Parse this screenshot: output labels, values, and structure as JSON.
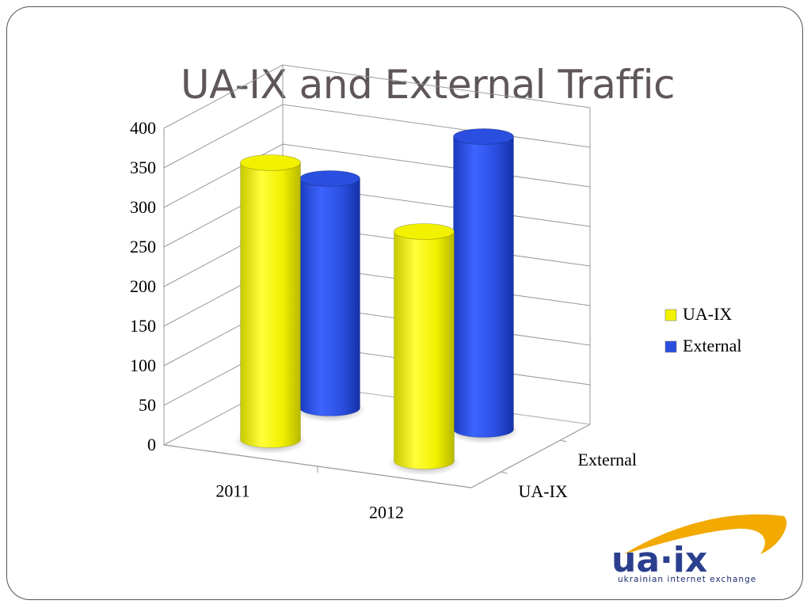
{
  "slide": {
    "title": "UA-IX and External Traffic"
  },
  "chart_data": {
    "type": "bar",
    "variant": "3d-cylinder",
    "categories": [
      "2011",
      "2012"
    ],
    "depth_labels": [
      "UA-IX",
      "External"
    ],
    "series": [
      {
        "name": "UA-IX",
        "values": [
          350,
          290
        ],
        "color": "#f2f200"
      },
      {
        "name": "External",
        "values": [
          290,
          370
        ],
        "color": "#2a4fe0"
      }
    ],
    "ylim": [
      0,
      400
    ],
    "yticks": [
      "0",
      "50",
      "100",
      "150",
      "200",
      "250",
      "300",
      "350",
      "400"
    ],
    "grid": true,
    "legend_position": "right"
  },
  "logo": {
    "brand": "ua·ix",
    "tagline": "ukrainian internet exchange"
  }
}
